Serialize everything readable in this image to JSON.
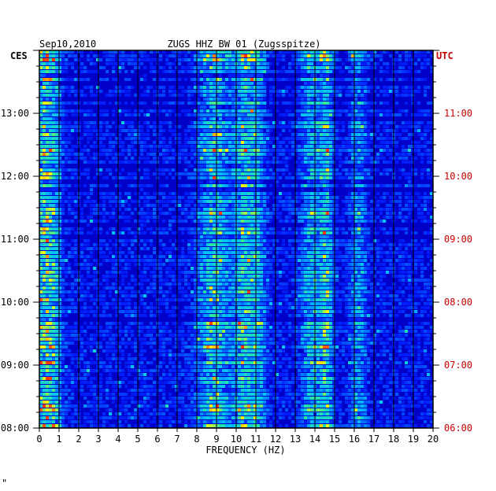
{
  "chart_data": {
    "type": "heatmap",
    "title_left": "Sep10,2010",
    "title_center": "ZUGS HHZ BW 01 (Zugsspitze)",
    "left_axis_label": "CES",
    "right_axis_label": "UTC",
    "xlabel": "FREQUENCY (HZ)",
    "xlim": [
      0,
      20
    ],
    "x_ticks": [
      "0",
      "1",
      "2",
      "3",
      "4",
      "5",
      "6",
      "7",
      "8",
      "9",
      "10",
      "11",
      "12",
      "13",
      "14",
      "15",
      "16",
      "17",
      "18",
      "19",
      "20"
    ],
    "y_ticks_left": [
      "08:00",
      "09:00",
      "10:00",
      "11:00",
      "12:00",
      "13:00"
    ],
    "y_ticks_right": [
      "06:00",
      "07:00",
      "08:00",
      "09:00",
      "10:00",
      "11:00"
    ],
    "time_range_hours_ces": [
      8.0,
      14.0
    ],
    "rows": 96,
    "dominant_bands_hz": [
      {
        "center": 0.4,
        "width": 0.6,
        "level": 0.6
      },
      {
        "center": 8.9,
        "width": 0.8,
        "level": 0.55
      },
      {
        "center": 10.4,
        "width": 0.5,
        "level": 0.55
      },
      {
        "center": 11.1,
        "width": 0.4,
        "level": 0.45
      },
      {
        "center": 13.9,
        "width": 0.6,
        "level": 0.45
      },
      {
        "center": 14.6,
        "width": 0.3,
        "level": 0.5
      },
      {
        "center": 16.2,
        "width": 0.4,
        "level": 0.35
      }
    ],
    "colors": {
      "background": "#0000c8",
      "low": "#0020ff",
      "mid": "#00c0ff",
      "high": "#ffff00",
      "peak": "#ff4000",
      "grid": "#000000",
      "left_text": "#000000",
      "right_text": "#cc0000"
    }
  },
  "footer_mark": "\""
}
